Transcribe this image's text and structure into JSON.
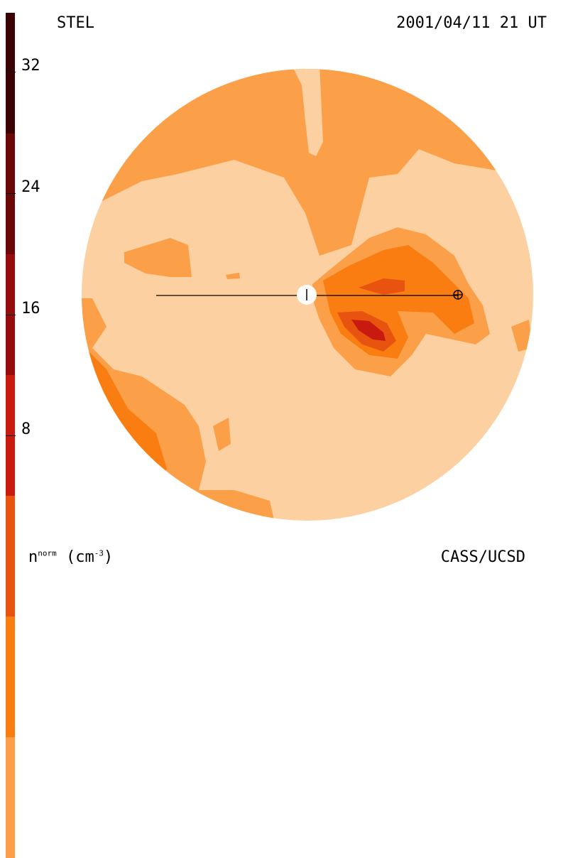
{
  "header": {
    "instrument": "STEL",
    "datetime": "2001/04/11 21 UT"
  },
  "footer": {
    "unit_symbol": "n",
    "unit_superscript": "norm",
    "unit_rest": " (cm",
    "unit_exp": "-3",
    "unit_close": ")",
    "credit": "CASS/UCSD"
  },
  "colorbar": {
    "ticks": [
      "32",
      "24",
      "16",
      "8"
    ],
    "colors": [
      "#fcd0a0",
      "#fba048",
      "#f97d10",
      "#e85410",
      "#c91a0f",
      "#960c0c",
      "#6a0707",
      "#3a0202"
    ]
  },
  "markers": {
    "sun": "sun-marker",
    "earth": "earth-marker"
  }
}
